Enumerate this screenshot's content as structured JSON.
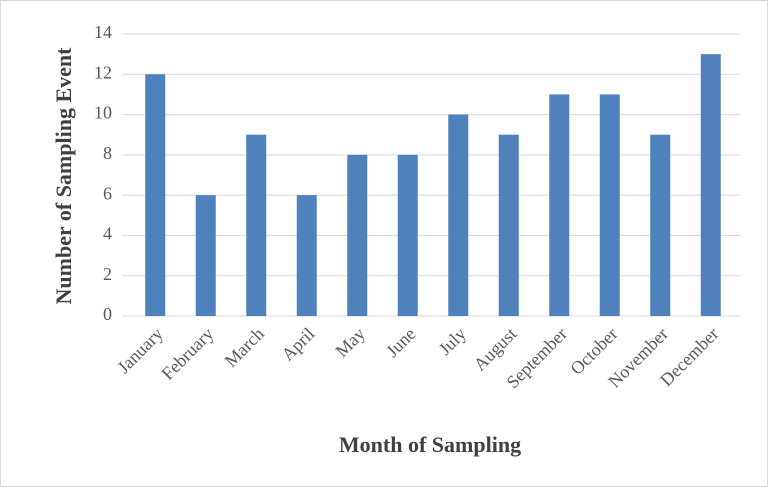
{
  "chart_data": {
    "type": "bar",
    "x_label": "Month of Sampling",
    "y_label": "Number of Sampling Event",
    "categories": [
      "January",
      "February",
      "March",
      "April",
      "May",
      "June",
      "July",
      "August",
      "September",
      "October",
      "November",
      "December"
    ],
    "values": [
      12,
      6,
      9,
      6,
      8,
      8,
      10,
      9,
      11,
      11,
      9,
      13
    ],
    "color": "#4f81bd",
    "ylim": [
      0,
      14
    ],
    "yticks": [
      0,
      2,
      4,
      6,
      8,
      10,
      12,
      14
    ],
    "grid": true
  }
}
